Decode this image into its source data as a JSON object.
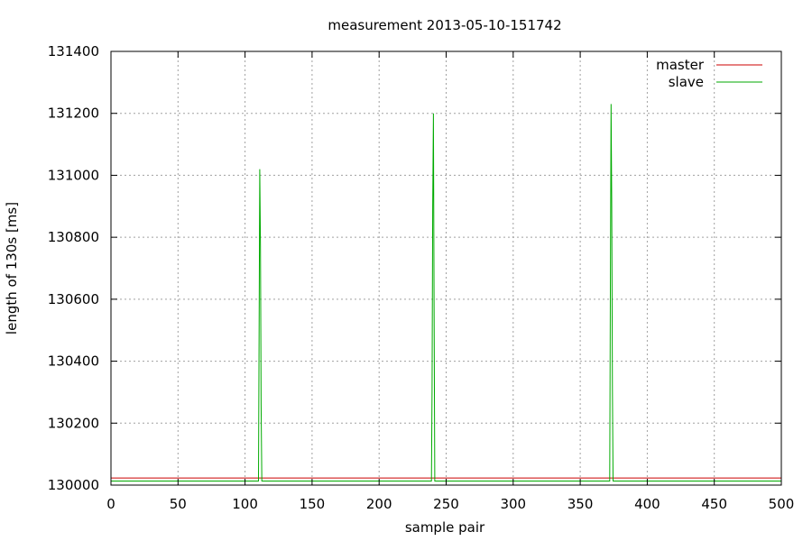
{
  "chart_data": {
    "type": "line",
    "title": "measurement 2013-05-10-151742",
    "xlabel": "sample pair",
    "ylabel": "length of 130s [ms]",
    "xlim": [
      0,
      500
    ],
    "ylim": [
      130000,
      131400
    ],
    "xticks": [
      0,
      50,
      100,
      150,
      200,
      250,
      300,
      350,
      400,
      450,
      500
    ],
    "yticks": [
      130000,
      130200,
      130400,
      130600,
      130800,
      131000,
      131200,
      131400
    ],
    "grid": true,
    "legend_position": "top-right",
    "series": [
      {
        "name": "master",
        "color": "#cc0000",
        "x": [
          0,
          500
        ],
        "y": [
          130023,
          130023
        ]
      },
      {
        "name": "slave",
        "color": "#00aa00",
        "x": [
          0,
          5,
          500,
          110,
          110.5,
          111,
          111.5,
          112,
          112.5,
          113,
          113.5,
          239,
          239.5,
          240,
          240.5,
          241,
          241.5,
          372,
          372.5,
          373,
          373.5,
          374,
          374.5
        ],
        "y": [
          130013,
          130013,
          130013,
          130013,
          130510,
          131020,
          130770,
          130260,
          130013,
          130013,
          130013,
          130013,
          130310,
          130900,
          131200,
          130600,
          130013,
          130013,
          130620,
          131230,
          130920,
          130310,
          130013
        ]
      }
    ]
  }
}
